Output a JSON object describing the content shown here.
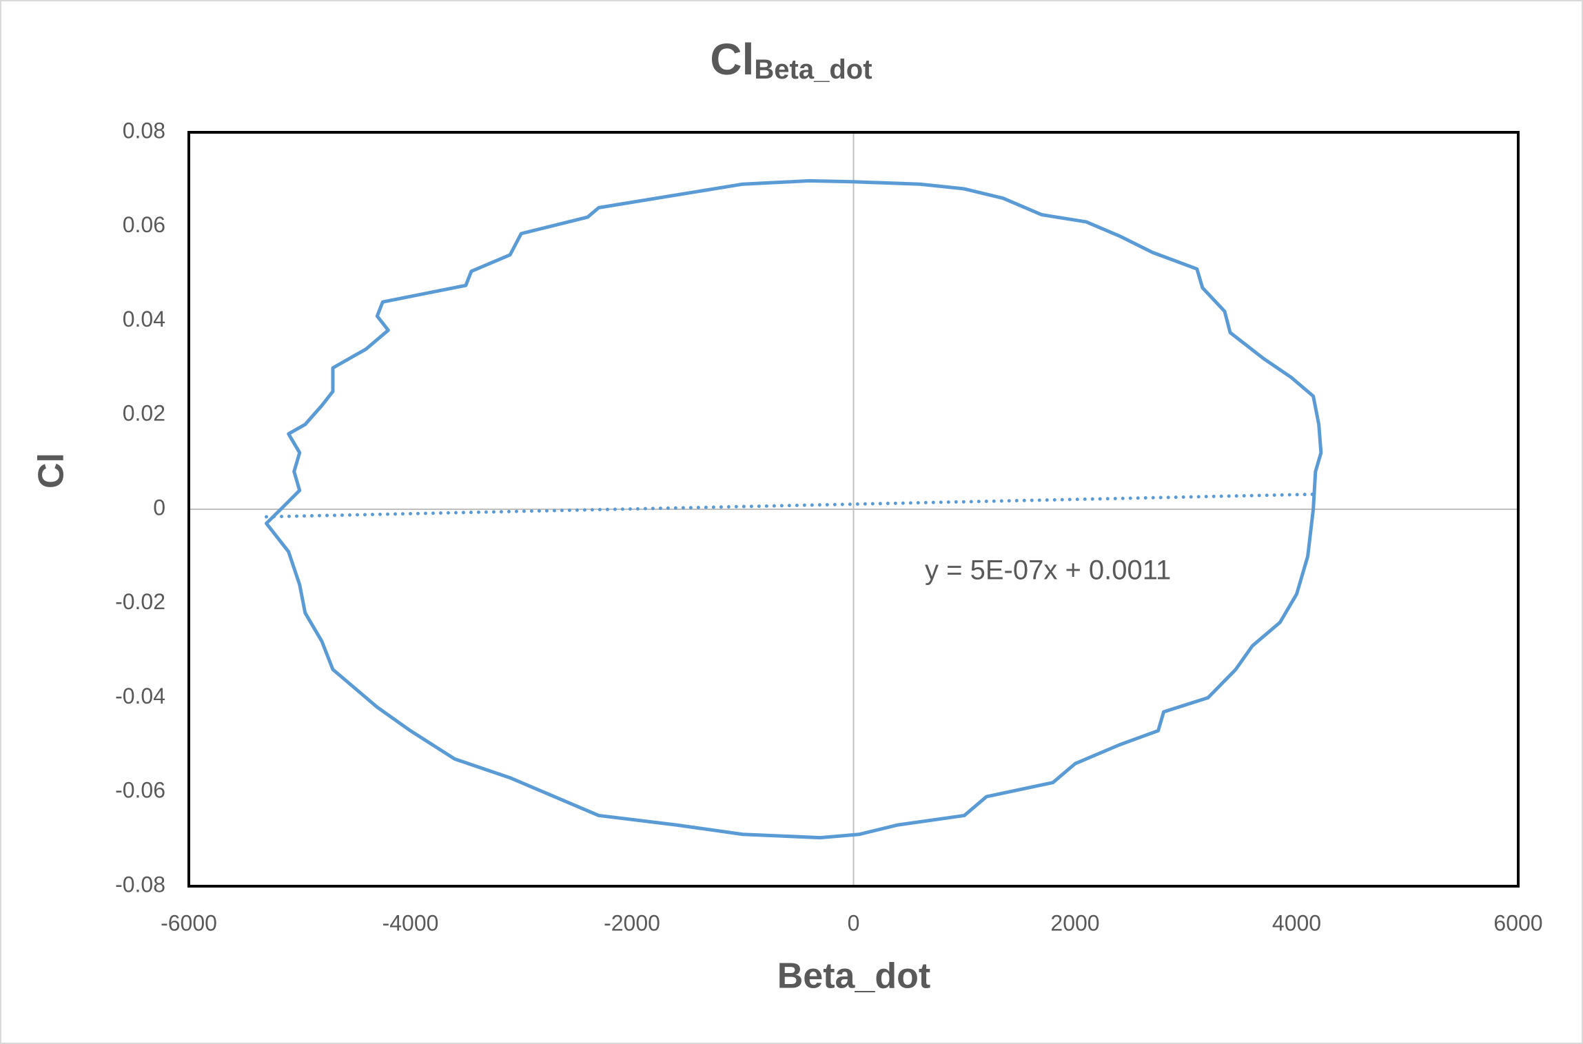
{
  "chart_data": {
    "type": "line",
    "title": "Cl",
    "title_subscript": "Beta_dot",
    "x_label": "Beta_dot",
    "y_label": "Cl",
    "xlim": [
      -6000,
      6000
    ],
    "xticks": [
      -6000,
      -4000,
      -2000,
      0,
      2000,
      4000,
      6000
    ],
    "ylim": [
      -0.08,
      0.08
    ],
    "yticks": [
      -0.08,
      -0.06,
      -0.04,
      -0.02,
      0,
      0.02,
      0.04,
      0.06,
      0.08
    ],
    "series": [
      {
        "color": "#5b9bd5",
        "x": [
          0,
          600,
          1000,
          1350,
          1700,
          2100,
          2400,
          2700,
          3100,
          3150,
          3350,
          3400,
          3700,
          3950,
          4150,
          4200,
          4220,
          4170,
          4150,
          4100,
          4000,
          3850,
          3600,
          3450,
          3200,
          2800,
          2750,
          2400,
          2000,
          1800,
          1200,
          1000,
          400,
          50,
          -300,
          -1000,
          -1600,
          -2300,
          -2700,
          -3100,
          -3600,
          -4000,
          -4300,
          -4700,
          -4800,
          -4950,
          -5000,
          -5100,
          -5200,
          -5300,
          -5170,
          -5000,
          -5050,
          -5000,
          -5100,
          -4950,
          -4800,
          -4700,
          -4700,
          -4400,
          -4200,
          -4300,
          -4250,
          -3500,
          -3450,
          -3100,
          -3000,
          -2400,
          -2300,
          -1000,
          -400,
          0
        ],
        "values": [
          0.0695,
          0.069,
          0.068,
          0.066,
          0.0625,
          0.061,
          0.058,
          0.0545,
          0.051,
          0.047,
          0.042,
          0.0375,
          0.032,
          0.028,
          0.024,
          0.018,
          0.012,
          0.008,
          0.0,
          -0.01,
          -0.018,
          -0.024,
          -0.029,
          -0.034,
          -0.04,
          -0.043,
          -0.047,
          -0.05,
          -0.054,
          -0.058,
          -0.061,
          -0.065,
          -0.067,
          -0.069,
          -0.0697,
          -0.069,
          -0.067,
          -0.065,
          -0.061,
          -0.057,
          -0.053,
          -0.047,
          -0.042,
          -0.034,
          -0.028,
          -0.022,
          -0.016,
          -0.009,
          -0.006,
          -0.003,
          0.0,
          0.004,
          0.008,
          0.012,
          0.016,
          0.018,
          0.022,
          0.025,
          0.03,
          0.034,
          0.038,
          0.041,
          0.044,
          0.0475,
          0.0505,
          0.054,
          0.0585,
          0.062,
          0.064,
          0.069,
          0.0697,
          0.0695
        ]
      },
      {
        "color": "#5b9bd5",
        "dash": "dotted",
        "label": "y = 5E-07x + 0.0011",
        "x": [
          -5300,
          4200
        ],
        "values": [
          -0.0016,
          0.0032
        ]
      }
    ],
    "zero_lines": true
  }
}
